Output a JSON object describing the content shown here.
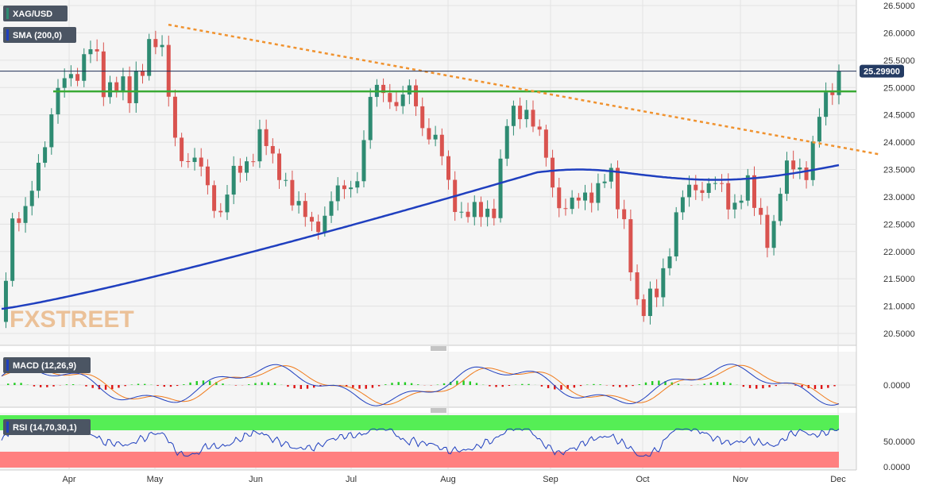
{
  "chart_data": {
    "type": "candlestick",
    "symbol": "XAG/USD",
    "indicators": {
      "sma": {
        "label": "SMA (200,0)",
        "color": "#1f3fbf"
      },
      "macd": {
        "label": "MACD (12,26,9)",
        "macd_color": "#1f3fbf",
        "signal_color": "#f07a1a",
        "hist_pos": "#22cc22",
        "hist_neg": "#dd1111"
      },
      "rsi": {
        "label": "RSI (14,70,30,1)",
        "color": "#1f3fbf",
        "upper_zone": "#55ee55",
        "lower_zone": "#ff8080"
      }
    },
    "price_axis": {
      "ticks": [
        "26.5000",
        "26.0000",
        "25.5000",
        "25.0000",
        "24.5000",
        "24.0000",
        "23.5000",
        "23.0000",
        "22.5000",
        "22.0000",
        "21.5000",
        "21.0000",
        "20.5000"
      ],
      "ylim": [
        20.3,
        26.5
      ]
    },
    "macd_axis": {
      "ticks": [
        "0.0000"
      ]
    },
    "rsi_axis": {
      "ticks": [
        "50.0000",
        "0.0000"
      ]
    },
    "months": [
      "Apr",
      "May",
      "Jun",
      "Jul",
      "Aug",
      "Sep",
      "Oct",
      "Nov",
      "Dec"
    ],
    "current_price": "25.29900",
    "horizontal_support": 24.93,
    "trendline": {
      "start_value": 26.15,
      "end_value": 23.78,
      "color": "#f0922e"
    },
    "watermark": "FXSTREET",
    "colors": {
      "up": "#2e8b72",
      "down": "#d9534f",
      "support": "#3aaa35"
    }
  }
}
